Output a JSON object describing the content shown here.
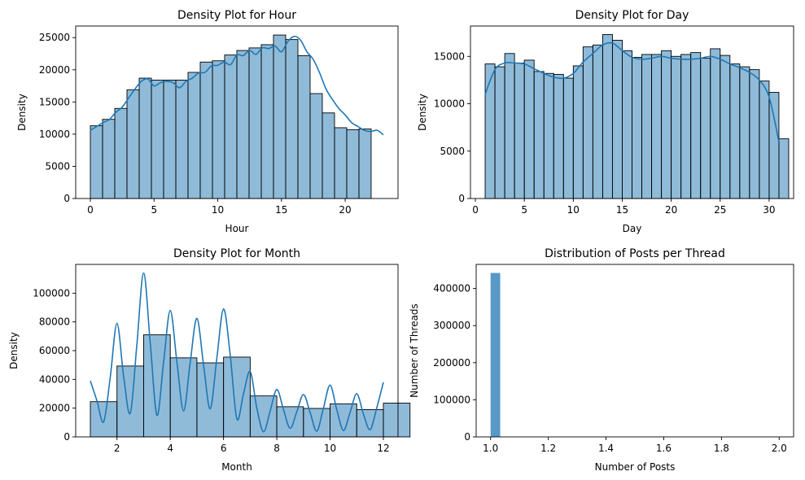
{
  "chart_data": [
    {
      "type": "bar",
      "title": "Density Plot for Hour",
      "xlabel": "Hour",
      "ylabel": "Density",
      "xlim": [
        -1.15,
        24.15
      ],
      "ylim": [
        0,
        26800
      ],
      "xticks": [
        0,
        5,
        10,
        15,
        20
      ],
      "yticks": [
        0,
        5000,
        10000,
        15000,
        20000,
        25000
      ],
      "bin_start": 0,
      "bin_width": 0.9583,
      "values": [
        11300,
        12300,
        14000,
        16900,
        18700,
        18400,
        18400,
        18400,
        19600,
        21200,
        21400,
        22300,
        23000,
        23400,
        23900,
        25400,
        24700,
        22200,
        16300,
        13300,
        11000,
        10700,
        10800
      ],
      "kde": {
        "x": [
          0,
          0.5,
          1,
          1.5,
          2,
          2.5,
          3,
          3.5,
          4,
          4.5,
          5,
          5.5,
          6,
          6.5,
          7,
          7.5,
          8,
          8.5,
          9,
          9.5,
          10,
          10.5,
          11,
          11.5,
          12,
          12.5,
          13,
          13.5,
          14,
          14.5,
          15,
          15.5,
          16,
          16.5,
          17,
          17.5,
          18,
          18.5,
          19,
          19.5,
          20,
          20.5,
          21,
          21.5,
          22,
          22.5,
          23
        ],
        "y": [
          10600,
          11200,
          11800,
          12300,
          13400,
          14200,
          15600,
          17000,
          18200,
          18600,
          17500,
          18000,
          18200,
          18000,
          17200,
          18200,
          18700,
          19500,
          19600,
          20600,
          20700,
          21200,
          20800,
          22300,
          22200,
          23000,
          22400,
          23400,
          23300,
          23700,
          22800,
          24400,
          25200,
          24600,
          22800,
          21600,
          19500,
          17000,
          15400,
          14000,
          13000,
          11800,
          11200,
          10600,
          10400,
          10600,
          9900
        ]
      },
      "color": "#1f77b4"
    },
    {
      "type": "bar",
      "title": "Density Plot for Day",
      "xlabel": "Day",
      "ylabel": "Density",
      "xlim": [
        -0.5,
        32.5
      ],
      "ylim": [
        0,
        18200
      ],
      "xticks": [
        0,
        5,
        10,
        15,
        20,
        25,
        30
      ],
      "yticks": [
        0,
        5000,
        10000,
        15000
      ],
      "bin_start": 1,
      "bin_width": 1,
      "values": [
        14200,
        13900,
        15300,
        14300,
        14600,
        13400,
        13200,
        13100,
        12700,
        14000,
        16000,
        16200,
        17300,
        16700,
        15600,
        14900,
        15200,
        15200,
        15600,
        15000,
        15200,
        15400,
        14800,
        15800,
        15100,
        14200,
        13900,
        13600,
        12400,
        11200,
        6300
      ],
      "kde": {
        "x": [
          1,
          2,
          3,
          4,
          5,
          6,
          7,
          8,
          9,
          10,
          11,
          12,
          13,
          14,
          15,
          16,
          17,
          18,
          19,
          20,
          21,
          22,
          23,
          24,
          25,
          26,
          27,
          28,
          29,
          30,
          31
        ],
        "y": [
          11000,
          13600,
          14300,
          14300,
          14200,
          13700,
          13200,
          12800,
          12700,
          13200,
          14400,
          15300,
          16200,
          16400,
          15600,
          14900,
          14700,
          14800,
          15000,
          14800,
          14700,
          14700,
          14800,
          15000,
          14700,
          14200,
          13800,
          13300,
          12500,
          10700,
          6000
        ]
      },
      "color": "#1f77b4"
    },
    {
      "type": "bar",
      "title": "Density Plot for Month",
      "xlabel": "Month",
      "ylabel": "Density",
      "xlim": [
        0.45,
        12.55
      ],
      "ylim": [
        0,
        120000
      ],
      "xticks": [
        2,
        4,
        6,
        8,
        10,
        12
      ],
      "yticks": [
        0,
        20000,
        40000,
        60000,
        80000,
        100000
      ],
      "bin_start": 1,
      "bin_width": 1,
      "values": [
        24500,
        49300,
        71000,
        55000,
        51500,
        55500,
        28500,
        21000,
        19800,
        23000,
        19000,
        23500
      ],
      "kde": {
        "x": [
          1,
          1.25,
          1.5,
          1.75,
          2,
          2.25,
          2.5,
          2.75,
          3,
          3.25,
          3.5,
          3.75,
          4,
          4.25,
          4.5,
          4.75,
          5,
          5.25,
          5.5,
          5.75,
          6,
          6.25,
          6.5,
          6.75,
          7,
          7.25,
          7.5,
          7.75,
          8,
          8.25,
          8.5,
          8.75,
          9,
          9.25,
          9.5,
          9.75,
          10,
          10.25,
          10.5,
          10.75,
          11,
          11.25,
          11.5,
          11.75,
          12
        ],
        "y": [
          39000,
          25000,
          10500,
          42000,
          79000,
          42000,
          16500,
          65000,
          114000,
          65000,
          15000,
          52000,
          88000,
          52000,
          18000,
          52000,
          82500,
          50000,
          19500,
          55000,
          89000,
          57000,
          12500,
          30000,
          45500,
          20000,
          3500,
          18000,
          33000,
          19000,
          6000,
          17500,
          29500,
          17000,
          4000,
          20000,
          36000,
          19000,
          4500,
          17000,
          30000,
          16000,
          5000,
          20000,
          38000
        ]
      },
      "color": "#1f77b4"
    },
    {
      "type": "bar",
      "title": "Distribution of Posts per Thread",
      "xlabel": "Number of Posts",
      "ylabel": "Number of Threads",
      "xlim": [
        0.95,
        2.05
      ],
      "ylim": [
        0,
        465000
      ],
      "xticks": [
        1.0,
        1.2,
        1.4,
        1.6,
        1.8,
        2.0
      ],
      "yticks": [
        0,
        100000,
        200000,
        300000,
        400000
      ],
      "bin_start": 1,
      "bin_width": 0.0333,
      "values": [
        442000
      ],
      "color": "#1f77b4"
    }
  ]
}
